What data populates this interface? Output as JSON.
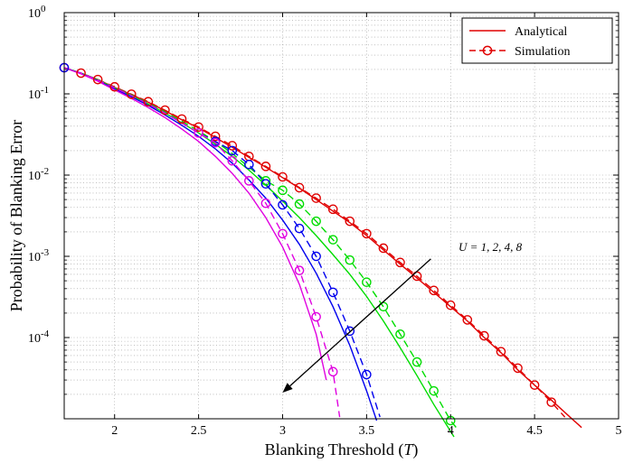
{
  "chart_data": {
    "type": "line",
    "xlabel": "Blanking Threshold (T)",
    "ylabel": "Probability of Blanking Error",
    "xlim": [
      1.7,
      5
    ],
    "ylim": [
      1e-05,
      1
    ],
    "y_scale": "log",
    "x_ticks": [
      "2",
      "2.5",
      "3",
      "3.5",
      "4",
      "4.5",
      "5"
    ],
    "y_tick_exponents": [
      "0",
      "-1",
      "-2",
      "-3",
      "-4"
    ],
    "grid": true,
    "legend": {
      "position": "top-right",
      "entries": [
        "Analytical",
        "Simulation"
      ]
    },
    "annotation": {
      "text": "U = 1, 2, 4, 8",
      "arrow_from": [
        3.85,
        0.00065
      ],
      "arrow_to": [
        3.0,
        2.1e-05
      ]
    },
    "series": [
      {
        "color": "#e00000",
        "analytical": {
          "x": [
            1.7,
            1.8,
            1.9,
            2.0,
            2.1,
            2.2,
            2.3,
            2.4,
            2.5,
            2.6,
            2.7,
            2.8,
            2.9,
            3.0,
            3.1,
            3.2,
            3.3,
            3.4,
            3.5,
            3.6,
            3.7,
            3.8,
            3.9,
            4.0,
            4.1,
            4.2,
            4.3,
            4.4,
            4.5,
            4.6,
            4.7,
            4.78
          ],
          "y": [
            0.21,
            0.18,
            0.15,
            0.12,
            0.098,
            0.079,
            0.062,
            0.048,
            0.038,
            0.029,
            0.022,
            0.0165,
            0.0125,
            0.0093,
            0.0069,
            0.005,
            0.0036,
            0.0026,
            0.0018,
            0.0012,
            0.0008,
            0.00054,
            0.00036,
            0.00024,
            0.00016,
            0.0001,
            6.5e-05,
            4e-05,
            2.6e-05,
            1.7e-05,
            1.1e-05,
            7.8e-06
          ]
        },
        "simulation": {
          "x": [
            1.7,
            1.8,
            1.9,
            2.0,
            2.1,
            2.2,
            2.3,
            2.4,
            2.5,
            2.6,
            2.7,
            2.8,
            2.9,
            3.0,
            3.1,
            3.2,
            3.3,
            3.4,
            3.5,
            3.6,
            3.7,
            3.8,
            3.9,
            4.0,
            4.1,
            4.2,
            4.3,
            4.4,
            4.5,
            4.6,
            4.68
          ],
          "y": [
            0.21,
            0.18,
            0.15,
            0.122,
            0.099,
            0.08,
            0.063,
            0.049,
            0.039,
            0.03,
            0.023,
            0.017,
            0.0128,
            0.0095,
            0.007,
            0.0052,
            0.0038,
            0.0027,
            0.0019,
            0.00126,
            0.00084,
            0.00057,
            0.00038,
            0.00025,
            0.000165,
            0.000105,
            6.7e-05,
            4.2e-05,
            2.6e-05,
            1.6e-05,
            1.05e-05
          ]
        }
      },
      {
        "color": "#00dd00",
        "analytical": {
          "x": [
            1.7,
            1.8,
            1.9,
            2.0,
            2.1,
            2.2,
            2.3,
            2.4,
            2.5,
            2.6,
            2.7,
            2.8,
            2.9,
            3.0,
            3.1,
            3.2,
            3.3,
            3.4,
            3.5,
            3.6,
            3.7,
            3.8,
            3.9,
            4.0,
            4.02
          ],
          "y": [
            0.21,
            0.18,
            0.148,
            0.118,
            0.095,
            0.075,
            0.058,
            0.044,
            0.033,
            0.024,
            0.017,
            0.0115,
            0.0075,
            0.0048,
            0.003,
            0.0018,
            0.00105,
            0.0006,
            0.00032,
            0.00016,
            7.5e-05,
            3.4e-05,
            1.5e-05,
            7e-06,
            6e-06
          ]
        },
        "simulation": {
          "x": [
            1.7,
            1.8,
            1.9,
            2.0,
            2.1,
            2.2,
            2.3,
            2.4,
            2.5,
            2.6,
            2.7,
            2.8,
            2.9,
            3.0,
            3.1,
            3.2,
            3.3,
            3.4,
            3.5,
            3.6,
            3.7,
            3.8,
            3.9,
            4.0,
            4.04
          ],
          "y": [
            0.21,
            0.18,
            0.15,
            0.12,
            0.097,
            0.077,
            0.06,
            0.046,
            0.035,
            0.026,
            0.0185,
            0.0125,
            0.0085,
            0.0065,
            0.0044,
            0.0027,
            0.0016,
            0.0009,
            0.00048,
            0.00024,
            0.00011,
            5e-05,
            2.2e-05,
            9.5e-06,
            7.5e-06
          ]
        }
      },
      {
        "color": "#0000ee",
        "analytical": {
          "x": [
            1.7,
            1.8,
            1.9,
            2.0,
            2.1,
            2.2,
            2.3,
            2.4,
            2.5,
            2.6,
            2.7,
            2.8,
            2.9,
            3.0,
            3.1,
            3.2,
            3.3,
            3.4,
            3.5,
            3.56
          ],
          "y": [
            0.21,
            0.178,
            0.145,
            0.115,
            0.092,
            0.072,
            0.055,
            0.041,
            0.03,
            0.021,
            0.014,
            0.0087,
            0.0052,
            0.0028,
            0.0014,
            0.00062,
            0.00024,
            8e-05,
            2.2e-05,
            9.5e-06
          ]
        },
        "simulation": {
          "x": [
            1.7,
            1.8,
            1.9,
            2.0,
            2.1,
            2.2,
            2.3,
            2.4,
            2.5,
            2.6,
            2.7,
            2.8,
            2.9,
            3.0,
            3.1,
            3.2,
            3.3,
            3.4,
            3.5,
            3.58
          ],
          "y": [
            0.21,
            0.18,
            0.148,
            0.119,
            0.095,
            0.075,
            0.058,
            0.044,
            0.033,
            0.026,
            0.02,
            0.0135,
            0.0078,
            0.0043,
            0.0022,
            0.001,
            0.00036,
            0.00012,
            3.5e-05,
            1.05e-05
          ]
        }
      },
      {
        "color": "#e000e0",
        "analytical": {
          "x": [
            1.7,
            1.8,
            1.9,
            2.0,
            2.1,
            2.2,
            2.3,
            2.4,
            2.5,
            2.6,
            2.7,
            2.8,
            2.9,
            3.0,
            3.1,
            3.2,
            3.26
          ],
          "y": [
            0.21,
            0.176,
            0.143,
            0.112,
            0.088,
            0.068,
            0.051,
            0.037,
            0.026,
            0.017,
            0.0105,
            0.006,
            0.003,
            0.0013,
            0.00045,
            0.00011,
            3e-05
          ]
        },
        "simulation": {
          "x": [
            1.7,
            1.8,
            1.9,
            2.0,
            2.1,
            2.2,
            2.3,
            2.4,
            2.5,
            2.6,
            2.7,
            2.8,
            2.9,
            3.0,
            3.1,
            3.2,
            3.3,
            3.34
          ],
          "y": [
            0.21,
            0.18,
            0.148,
            0.119,
            0.095,
            0.075,
            0.058,
            0.044,
            0.033,
            0.025,
            0.015,
            0.0085,
            0.0045,
            0.0019,
            0.00067,
            0.00018,
            3.8e-05,
            1.05e-05
          ]
        }
      }
    ],
    "markers": [
      {
        "color": "#e00000",
        "x": [
          1.7,
          1.8,
          1.9,
          2.0,
          2.1,
          2.2,
          2.3,
          2.4,
          2.5,
          2.6,
          2.7,
          2.8,
          2.9,
          3.0,
          3.1,
          3.2,
          3.3,
          3.4,
          3.5,
          3.6,
          3.7,
          3.8,
          3.9,
          4.0,
          4.1,
          4.2,
          4.3,
          4.4,
          4.5,
          4.6
        ],
        "y": [
          0.21,
          0.18,
          0.15,
          0.122,
          0.099,
          0.08,
          0.063,
          0.049,
          0.039,
          0.03,
          0.023,
          0.017,
          0.0128,
          0.0095,
          0.007,
          0.0052,
          0.0038,
          0.0027,
          0.0019,
          0.00126,
          0.00084,
          0.00057,
          0.00038,
          0.00025,
          0.000165,
          0.000105,
          6.7e-05,
          4.2e-05,
          2.6e-05,
          1.6e-05
        ]
      },
      {
        "color": "#00dd00",
        "x": [
          2.9,
          3.0,
          3.1,
          3.2,
          3.3,
          3.4,
          3.5,
          3.6,
          3.7,
          3.8,
          3.9,
          4.0
        ],
        "y": [
          0.0085,
          0.0065,
          0.0044,
          0.0027,
          0.0016,
          0.0009,
          0.00048,
          0.00024,
          0.00011,
          5e-05,
          2.2e-05,
          9.5e-06
        ]
      },
      {
        "color": "#0000ee",
        "x": [
          1.7,
          2.6,
          2.7,
          2.8,
          2.9,
          3.0,
          3.1,
          3.2,
          3.3,
          3.4,
          3.5
        ],
        "y": [
          0.21,
          0.026,
          0.02,
          0.0135,
          0.0078,
          0.0043,
          0.0022,
          0.001,
          0.00036,
          0.00012,
          3.5e-05
        ]
      },
      {
        "color": "#e000e0",
        "x": [
          2.5,
          2.6,
          2.7,
          2.8,
          2.9,
          3.0,
          3.1,
          3.2,
          3.3
        ],
        "y": [
          0.033,
          0.025,
          0.015,
          0.0085,
          0.0045,
          0.0019,
          0.00067,
          0.00018,
          3.8e-05
        ]
      }
    ]
  }
}
